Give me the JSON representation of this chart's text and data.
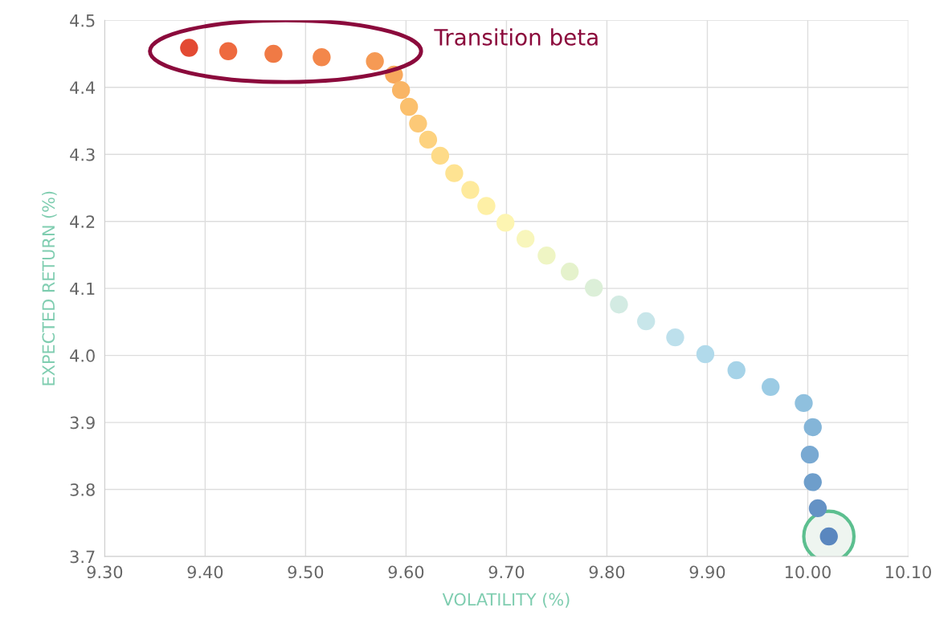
{
  "chart_data": {
    "type": "scatter",
    "xlabel": "VOLATILITY (%)",
    "ylabel": "EXPECTED RETURN (%)",
    "x": [
      9.384,
      9.423,
      9.468,
      9.516,
      9.569,
      9.588,
      9.595,
      9.603,
      9.612,
      9.622,
      9.634,
      9.648,
      9.664,
      9.68,
      9.699,
      9.719,
      9.74,
      9.763,
      9.787,
      9.812,
      9.839,
      9.868,
      9.898,
      9.929,
      9.963,
      9.996,
      10.005,
      10.002,
      10.005,
      10.01,
      10.021
    ],
    "values": [
      4.459,
      4.454,
      4.45,
      4.445,
      4.439,
      4.419,
      4.396,
      4.371,
      4.346,
      4.322,
      4.298,
      4.272,
      4.247,
      4.223,
      4.198,
      4.174,
      4.149,
      4.125,
      4.101,
      4.076,
      4.051,
      4.027,
      4.002,
      3.978,
      3.953,
      3.929,
      3.893,
      3.852,
      3.811,
      3.772,
      3.73
    ],
    "colors": [
      "#e34a33",
      "#ee6a3f",
      "#f07a45",
      "#f3874b",
      "#f59a55",
      "#f8a85c",
      "#f9b565",
      "#fbc06d",
      "#fcc977",
      "#fdd27f",
      "#fedb88",
      "#fee392",
      "#feea9c",
      "#fef0a6",
      "#fdf5b2",
      "#f8f6bc",
      "#eff5c4",
      "#e5f2cc",
      "#dcefd8",
      "#d3ebe3",
      "#c8e6ea",
      "#bde0ec",
      "#b1daeb",
      "#a6d3e8",
      "#9bcbe4",
      "#8fc0de",
      "#84b5d8",
      "#79a9d2",
      "#6e9ecb",
      "#6492c5",
      "#5a87bf"
    ],
    "marker": "circle",
    "xlim": [
      9.3,
      10.1
    ],
    "ylim": [
      3.7,
      4.5
    ],
    "xticks": [
      {
        "value": 9.3,
        "label": "9.30"
      },
      {
        "value": 9.4,
        "label": "9.40"
      },
      {
        "value": 9.5,
        "label": "9.50"
      },
      {
        "value": 9.6,
        "label": "9.60"
      },
      {
        "value": 9.7,
        "label": "9.70"
      },
      {
        "value": 9.8,
        "label": "9.80"
      },
      {
        "value": 9.9,
        "label": "9.90"
      },
      {
        "value": 10.0,
        "label": "10.00"
      },
      {
        "value": 10.1,
        "label": "10.10"
      }
    ],
    "yticks": [
      3.7,
      3.8,
      3.9,
      {
        "value": 4.0,
        "label": "4.0"
      },
      4.1,
      4.2,
      4.3,
      4.4,
      4.5
    ],
    "grid": true,
    "annotations": [
      "Transition beta"
    ]
  }
}
